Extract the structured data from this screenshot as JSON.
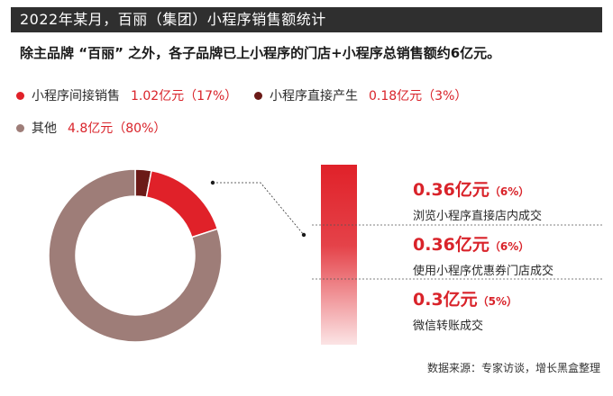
{
  "header": {
    "title": "2022年某月，百丽（集团）小程序销售额统计",
    "subtitle": "除主品牌 “百丽” 之外，各子品牌已上小程序的门店+小程序总销售额约6亿元。"
  },
  "legend": [
    {
      "label": "小程序间接销售",
      "value": "1.02亿元（17%）",
      "color": "#e02129"
    },
    {
      "label": "小程序直接产生",
      "value": "0.18亿元（3%）",
      "color": "#6b1a17"
    },
    {
      "label": "其他",
      "value": "4.8亿元（80%）",
      "color": "#9e7d78"
    }
  ],
  "breakdown": [
    {
      "amount": "0.36亿元",
      "percent": "（6%）",
      "desc": "浏览小程序直接店内成交"
    },
    {
      "amount": "0.36亿元",
      "percent": "（6%）",
      "desc": "使用小程序优惠券门店成交"
    },
    {
      "amount": "0.3亿元",
      "percent": "（5%）",
      "desc": "微信转账成交"
    }
  ],
  "source": "数据来源：专家访谈，增长黑盒整理",
  "colors": {
    "accent": "#d9232a",
    "title_bg": "#2f2f2f",
    "other": "#9e7d78",
    "direct": "#6b1a17",
    "indirect": "#e02129"
  },
  "chart_data": [
    {
      "type": "pie",
      "variant": "donut",
      "categories": [
        "小程序直接产生",
        "小程序间接销售",
        "其他"
      ],
      "values": [
        0.18,
        1.02,
        4.8
      ],
      "percent": [
        3,
        17,
        80
      ],
      "unit": "亿元"
    },
    {
      "type": "bar",
      "variant": "stacked-breakdown",
      "categories": [
        "浏览小程序直接店内成交",
        "使用小程序优惠券门店成交",
        "微信转账成交"
      ],
      "values": [
        0.36,
        0.36,
        0.3
      ],
      "percent": [
        6,
        6,
        5
      ],
      "unit": "亿元"
    }
  ]
}
